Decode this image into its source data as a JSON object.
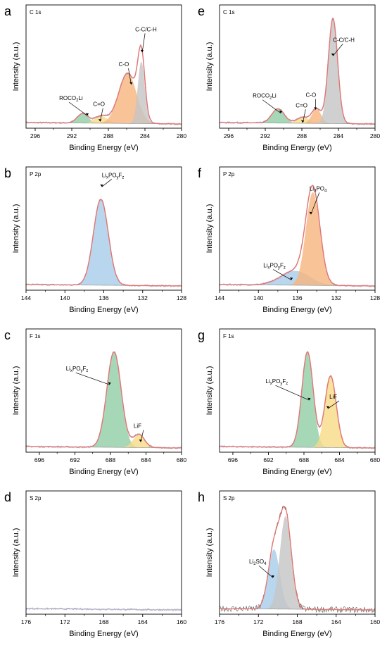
{
  "figure": {
    "panels": [
      {
        "letter": "a",
        "tag": "C 1s",
        "axis_label_x": "Binding Energy (eV)",
        "axis_label_y": "Intensity (a.u.)"
      },
      {
        "letter": "e",
        "tag": "C 1s",
        "axis_label_x": "Binding Energy (eV)",
        "axis_label_y": "Intensity (a.u.)"
      },
      {
        "letter": "b",
        "tag": "P 2p",
        "axis_label_x": "Binding Energy (eV)",
        "axis_label_y": "Intensity (a.u.)"
      },
      {
        "letter": "f",
        "tag": "P 2p",
        "axis_label_x": "Binding Energy (eV)",
        "axis_label_y": "Intensity (a.u.)"
      },
      {
        "letter": "c",
        "tag": "F 1s",
        "axis_label_x": "Binding Energy (eV)",
        "axis_label_y": "Intensity (a.u.)"
      },
      {
        "letter": "g",
        "tag": "F 1s",
        "axis_label_x": "Binding Energy (eV)",
        "axis_label_y": "Intensity (a.u.)"
      },
      {
        "letter": "d",
        "tag": "S 2p",
        "axis_label_x": "Binding Energy (eV)",
        "axis_label_y": "Intensity (a.u.)"
      },
      {
        "letter": "h",
        "tag": "S 2p",
        "axis_label_x": "Binding Energy (eV)",
        "axis_label_y": "Intensity (a.u.)"
      }
    ]
  },
  "colors": {
    "envelope": "#e8746f",
    "raw": "#b3b3c8",
    "background": "#9a9a9a",
    "green": "#93cfa8",
    "yellow": "#f6dc87",
    "orange": "#f7b680",
    "gray": "#c6c6c6",
    "blue": "#a8cde9",
    "axis": "#000000"
  },
  "chart_data": [
    {
      "type": "area",
      "letter": "a",
      "region": "C 1s",
      "xlabel": "Binding Energy (eV)",
      "ylabel": "Intensity (a.u.)",
      "xlim": [
        297,
        280
      ],
      "xticks": [
        296,
        292,
        288,
        284,
        280
      ],
      "reversed_x": true,
      "series": [
        {
          "name": "ROCO2Li",
          "display": "ROCO₂Li",
          "color": "green",
          "center": 290.8,
          "fwhm": 1.4,
          "height": 0.08
        },
        {
          "name": "C=O",
          "display": "C=O",
          "color": "yellow",
          "center": 288.8,
          "fwhm": 1.6,
          "height": 0.06
        },
        {
          "name": "C-O",
          "display": "C-O",
          "color": "orange",
          "center": 285.9,
          "fwhm": 2.3,
          "height": 0.42
        },
        {
          "name": "C-C/C-H",
          "display": "C-C/C-H",
          "color": "gray",
          "center": 284.4,
          "fwhm": 0.9,
          "height": 0.52
        }
      ],
      "annotations": [
        {
          "text": "ROCO₂Li",
          "x": 290.3,
          "y": 0.12
        },
        {
          "text": "C=O",
          "x": 288.9,
          "y": 0.07
        },
        {
          "text": "C-O",
          "x": 285.5,
          "y": 0.38
        },
        {
          "text": "C-C/C-H",
          "x": 284.3,
          "y": 0.65
        }
      ]
    },
    {
      "type": "area",
      "letter": "e",
      "region": "C 1s",
      "xlabel": "Binding Energy (eV)",
      "ylabel": "Intensity (a.u.)",
      "xlim": [
        297,
        280
      ],
      "xticks": [
        296,
        292,
        288,
        284,
        280
      ],
      "reversed_x": true,
      "series": [
        {
          "name": "ROCO2Li",
          "display": "ROCO₂Li",
          "color": "green",
          "center": 290.6,
          "fwhm": 1.6,
          "height": 0.12
        },
        {
          "name": "C=O",
          "display": "C=O",
          "color": "yellow",
          "center": 287.9,
          "fwhm": 1.6,
          "height": 0.05
        },
        {
          "name": "C-O",
          "display": "C-O",
          "color": "orange",
          "center": 286.4,
          "fwhm": 1.2,
          "height": 0.12
        },
        {
          "name": "C-C/C-H",
          "display": "C-C/C-H",
          "color": "gray",
          "center": 284.6,
          "fwhm": 1.2,
          "height": 0.88
        }
      ],
      "annotations": [
        {
          "text": "ROCO₂Li",
          "x": 290.3,
          "y": 0.14
        },
        {
          "text": "C=O",
          "x": 287.9,
          "y": 0.06
        },
        {
          "text": "C-O",
          "x": 286.5,
          "y": 0.17
        },
        {
          "text": "C-C/C-H",
          "x": 284.6,
          "y": 0.62
        }
      ]
    },
    {
      "type": "area",
      "letter": "b",
      "region": "P 2p",
      "xlabel": "Binding Energy (eV)",
      "ylabel": "Intensity (a.u.)",
      "xlim": [
        144,
        128
      ],
      "xticks": [
        144,
        140,
        136,
        132,
        128
      ],
      "reversed_x": true,
      "series": [
        {
          "name": "LixPOyFz",
          "display": "LixPOyFz",
          "color": "blue",
          "center": 136.3,
          "fwhm": 1.8,
          "height": 0.72
        }
      ],
      "annotations": [
        {
          "text": "LixPOyFz",
          "x": 136.2,
          "y": 0.88
        }
      ]
    },
    {
      "type": "area",
      "letter": "f",
      "region": "P 2p",
      "xlabel": "Binding Energy (eV)",
      "ylabel": "Intensity (a.u.)",
      "xlim": [
        144,
        128
      ],
      "xticks": [
        144,
        140,
        136,
        132,
        128
      ],
      "reversed_x": true,
      "series": [
        {
          "name": "LixPOyFz",
          "display": "LixPOyFz",
          "color": "blue",
          "center": 136.2,
          "fwhm": 3.5,
          "height": 0.12
        },
        {
          "name": "Li3PO4",
          "display": "Li3PO4",
          "color": "orange",
          "center": 134.4,
          "fwhm": 1.7,
          "height": 0.78
        }
      ],
      "annotations": [
        {
          "text": "LixPOyFz",
          "x": 136.6,
          "y": 0.1
        },
        {
          "text": "Li3PO4",
          "x": 134.6,
          "y": 0.65
        }
      ]
    },
    {
      "type": "area",
      "letter": "c",
      "region": "F 1s",
      "xlabel": "Binding Energy (eV)",
      "ylabel": "Intensity (a.u.)",
      "xlim": [
        697.5,
        680
      ],
      "xticks": [
        696,
        692,
        688,
        684,
        680
      ],
      "reversed_x": true,
      "series": [
        {
          "name": "LixPOyFz",
          "display": "LixPOyFz",
          "color": "green",
          "center": 687.6,
          "fwhm": 1.9,
          "height": 0.8
        },
        {
          "name": "LiF",
          "display": "LiF",
          "color": "yellow",
          "center": 684.8,
          "fwhm": 1.5,
          "height": 0.11
        }
      ],
      "annotations": [
        {
          "text": "LixPOyFz",
          "x": 688.1,
          "y": 0.58
        },
        {
          "text": "LiF",
          "x": 684.6,
          "y": 0.1
        }
      ]
    },
    {
      "type": "area",
      "letter": "g",
      "region": "F 1s",
      "xlabel": "Binding Energy (eV)",
      "ylabel": "Intensity (a.u.)",
      "xlim": [
        697.5,
        680
      ],
      "xticks": [
        696,
        692,
        688,
        684,
        680
      ],
      "reversed_x": true,
      "series": [
        {
          "name": "LixPOyFz",
          "display": "LixPOyFz",
          "color": "green",
          "center": 687.6,
          "fwhm": 1.5,
          "height": 0.8
        },
        {
          "name": "LiF",
          "display": "LiF",
          "color": "yellow",
          "center": 685.0,
          "fwhm": 1.5,
          "height": 0.6
        }
      ],
      "annotations": [
        {
          "text": "LixPOyFz",
          "x": 687.4,
          "y": 0.45
        },
        {
          "text": "LiF",
          "x": 685.3,
          "y": 0.38
        }
      ]
    },
    {
      "type": "line",
      "letter": "d",
      "region": "S 2p",
      "xlabel": "Binding Energy (eV)",
      "ylabel": "Intensity (a.u.)",
      "xlim": [
        176,
        160
      ],
      "xticks": [
        176,
        172,
        168,
        164,
        160
      ],
      "reversed_x": true,
      "series": [],
      "annotations": []
    },
    {
      "type": "area",
      "letter": "h",
      "region": "S 2p",
      "xlabel": "Binding Energy (eV)",
      "ylabel": "Intensity (a.u.)",
      "xlim": [
        176,
        160
      ],
      "xticks": [
        176,
        172,
        168,
        164,
        160
      ],
      "reversed_x": true,
      "series": [
        {
          "name": "Li2SO4",
          "display": "Li2SO4",
          "color": "blue",
          "center": 170.4,
          "fwhm": 1.4,
          "height": 0.5
        },
        {
          "name": "Li2SO4-b",
          "display": "Li2SO4",
          "color": "gray",
          "center": 169.2,
          "fwhm": 1.4,
          "height": 0.78
        }
      ],
      "annotations": [
        {
          "text": "Li2SO4",
          "x": 170.5,
          "y": 0.32
        }
      ]
    }
  ]
}
